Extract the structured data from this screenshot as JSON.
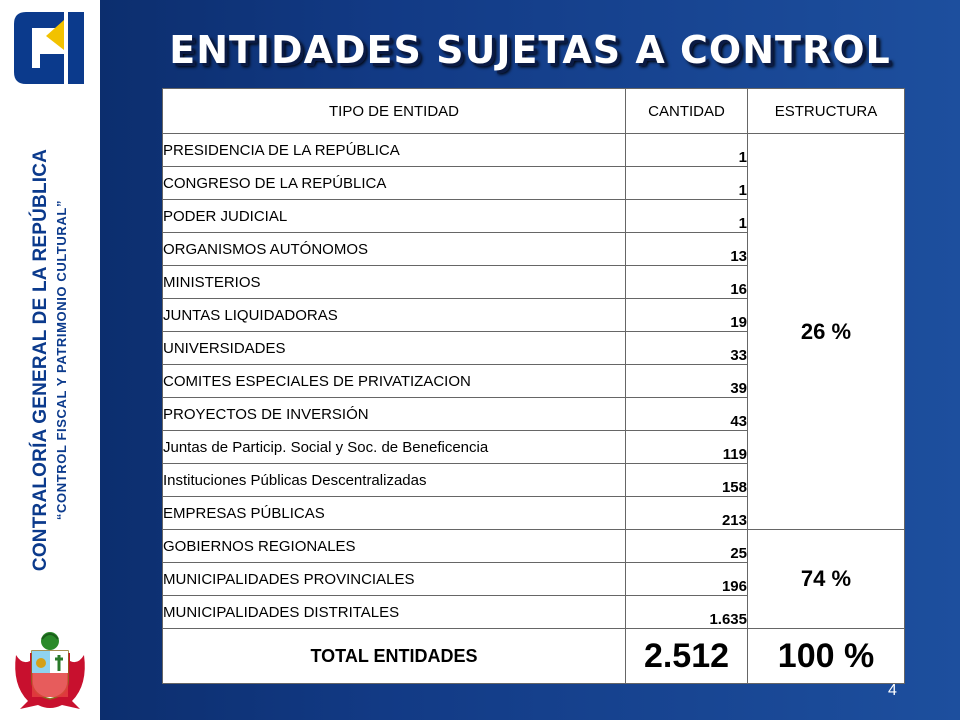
{
  "slide": {
    "title": "ENTIDADES SUJETAS A CONTROL",
    "page_number": "4"
  },
  "sidebar": {
    "org_name": "CONTRALORÍA GENERAL DE LA REPÚBLICA",
    "motto": "“CONTROL FISCAL Y PATRIMONIO CULTURAL”",
    "logo_icon": "cgr-logo-icon",
    "shield_icon": "peru-coat-of-arms-icon"
  },
  "table": {
    "headers": [
      "TIPO DE ENTIDAD",
      "CANTIDAD",
      "ESTRUCTURA"
    ],
    "rows": [
      {
        "name": "PRESIDENCIA DE LA REPÚBLICA",
        "qty": "1"
      },
      {
        "name": "CONGRESO DE LA REPÚBLICA",
        "qty": "1"
      },
      {
        "name": "PODER JUDICIAL",
        "qty": "1"
      },
      {
        "name": "ORGANISMOS AUTÓNOMOS",
        "qty": "13"
      },
      {
        "name": "MINISTERIOS",
        "qty": "16"
      },
      {
        "name": "JUNTAS LIQUIDADORAS",
        "qty": "19"
      },
      {
        "name": "UNIVERSIDADES",
        "qty": "33"
      },
      {
        "name": "COMITES ESPECIALES DE PRIVATIZACION",
        "qty": "39"
      },
      {
        "name": "PROYECTOS DE INVERSIÓN",
        "qty": "43"
      },
      {
        "name": "Juntas de Particip. Social  y Soc. de Beneficencia",
        "qty": "119"
      },
      {
        "name": "Instituciones Públicas Descentralizadas",
        "qty": "158"
      },
      {
        "name": "EMPRESAS PÚBLICAS",
        "qty": "213"
      },
      {
        "name": "GOBIERNOS REGIONALES",
        "qty": "25"
      },
      {
        "name": "MUNICIPALIDADES PROVINCIALES",
        "qty": "196"
      },
      {
        "name": "MUNICIPALIDADES DISTRITALES",
        "qty": "1.635"
      }
    ],
    "group1_pct": "26 %",
    "group2_pct": "74  %",
    "total_label": "TOTAL ENTIDADES",
    "total_qty": "2.512",
    "total_pct": "100 %"
  },
  "colors": {
    "background_dark": "#0a2a66",
    "background_light": "#1d4f9e",
    "sidebar_text": "#0b3a8c",
    "logo_yellow": "#f2c200",
    "shield_red": "#c8102e"
  }
}
